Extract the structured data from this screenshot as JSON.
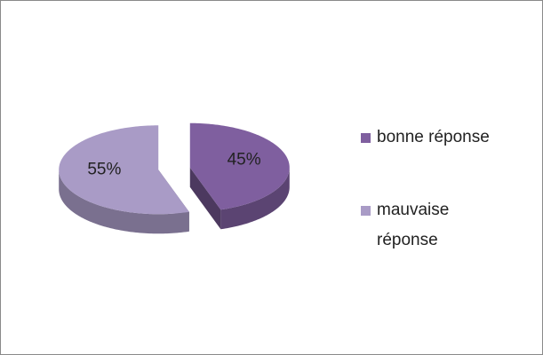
{
  "chart_data": {
    "type": "pie3d",
    "categories": [
      "bonne réponse",
      "mauvaise réponse"
    ],
    "values": [
      45,
      55
    ],
    "value_labels": [
      "45%",
      "55%"
    ],
    "colors": [
      "#7f5f9f",
      "#a99bc6"
    ],
    "legend": "right"
  }
}
